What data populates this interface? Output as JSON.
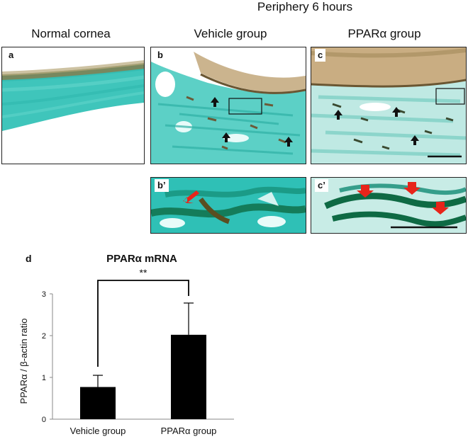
{
  "figure": {
    "top_header": "Periphery 6 hours",
    "column_headers": [
      "Normal cornea",
      "Vehicle group",
      "PPARα group"
    ],
    "panels": [
      {
        "id": "a",
        "label": "a"
      },
      {
        "id": "b",
        "label": "b"
      },
      {
        "id": "c",
        "label": "c"
      },
      {
        "id": "b2",
        "label": "b’"
      },
      {
        "id": "c2",
        "label": "c’"
      }
    ]
  },
  "chart_data": {
    "type": "bar",
    "panel_label": "d",
    "title": "PPARα mRNA",
    "ylabel": "PPARα / β-actin ratio",
    "xlabel": "",
    "categories": [
      "Vehicle group",
      "PPARα group"
    ],
    "values": [
      0.77,
      2.02
    ],
    "errors": [
      0.28,
      0.76
    ],
    "ylim": [
      0,
      3
    ],
    "yticks": [
      0,
      1,
      2,
      3
    ],
    "significance": "**",
    "bar_color": "#000000",
    "grid": false,
    "legend": "none"
  }
}
